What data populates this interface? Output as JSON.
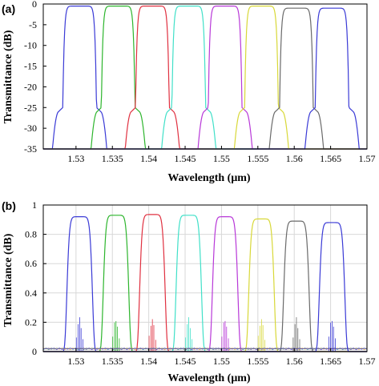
{
  "chart_data": [
    {
      "panel_label": "(a)",
      "type": "line",
      "xlabel": "Wavelength (μm)",
      "ylabel": "Transmittance (dB)",
      "xlim": [
        1.5255,
        1.57
      ],
      "ylim": [
        -35,
        0
      ],
      "xticks": [
        1.53,
        1.535,
        1.54,
        1.545,
        1.55,
        1.555,
        1.56,
        1.565,
        1.57
      ],
      "xtick_labels": [
        "1.53",
        "1.535",
        "1.54",
        "1.545",
        "1.55",
        "1.555",
        "1.56",
        "1.565",
        "1.57"
      ],
      "yticks": [
        0,
        -5,
        -10,
        -15,
        -20,
        -25,
        -30,
        -35
      ],
      "ytick_labels": [
        "0",
        "-5",
        "-10",
        "-15",
        "-20",
        "-25",
        "-30",
        "-35"
      ],
      "grid": false,
      "series": [
        {
          "color": "#3a3ad6",
          "center": 1.5305,
          "peak": -0.5,
          "halfwidth": 0.0018,
          "rolloff_knee": -25
        },
        {
          "color": "#2db52d",
          "center": 1.5358,
          "peak": -0.5,
          "halfwidth": 0.0018,
          "rolloff_knee": -25
        },
        {
          "color": "#e03040",
          "center": 1.5405,
          "peak": -0.5,
          "halfwidth": 0.0018,
          "rolloff_knee": -25
        },
        {
          "color": "#40e0c8",
          "center": 1.5455,
          "peak": -0.5,
          "halfwidth": 0.0018,
          "rolloff_knee": -25
        },
        {
          "color": "#b838d8",
          "center": 1.5505,
          "peak": -0.5,
          "halfwidth": 0.0018,
          "rolloff_knee": -25
        },
        {
          "color": "#d8d838",
          "center": 1.5555,
          "peak": -0.5,
          "halfwidth": 0.0018,
          "rolloff_knee": -25
        },
        {
          "color": "#6a6a6a",
          "center": 1.5603,
          "peak": -1.0,
          "halfwidth": 0.0018,
          "rolloff_knee": -25
        },
        {
          "color": "#3a3ad6",
          "center": 1.5652,
          "peak": -1.0,
          "halfwidth": 0.0018,
          "rolloff_knee": -25
        }
      ]
    },
    {
      "panel_label": "(b)",
      "type": "line",
      "xlabel": "Wavelength (μm)",
      "ylabel": "Transmittance (dB)",
      "xlim": [
        1.5255,
        1.57
      ],
      "ylim": [
        0,
        1
      ],
      "xticks": [
        1.53,
        1.535,
        1.54,
        1.545,
        1.55,
        1.555,
        1.56,
        1.565,
        1.57
      ],
      "xtick_labels": [
        "1.53",
        "1.535",
        "1.54",
        "1.545",
        "1.55",
        "1.555",
        "1.56",
        "1.565",
        "1.57"
      ],
      "yticks": [
        0,
        0.2,
        0.4,
        0.6,
        0.8,
        1
      ],
      "ytick_labels": [
        "0",
        "0.2",
        "0.4",
        "0.6",
        "0.8",
        "1"
      ],
      "grid": true,
      "series": [
        {
          "color": "#3a3ad6",
          "center": 1.5305,
          "peak": 0.92,
          "halfwidth": 0.0018
        },
        {
          "color": "#2db52d",
          "center": 1.5355,
          "peak": 0.93,
          "halfwidth": 0.0018
        },
        {
          "color": "#e03040",
          "center": 1.5405,
          "peak": 0.935,
          "halfwidth": 0.0018
        },
        {
          "color": "#40e0c8",
          "center": 1.5455,
          "peak": 0.93,
          "halfwidth": 0.0018
        },
        {
          "color": "#b838d8",
          "center": 1.5505,
          "peak": 0.92,
          "halfwidth": 0.0018
        },
        {
          "color": "#d8d838",
          "center": 1.5555,
          "peak": 0.905,
          "halfwidth": 0.0018
        },
        {
          "color": "#6a6a6a",
          "center": 1.5603,
          "peak": 0.89,
          "halfwidth": 0.0018
        },
        {
          "color": "#3a3ad6",
          "center": 1.5652,
          "peak": 0.88,
          "halfwidth": 0.0018
        }
      ]
    }
  ]
}
